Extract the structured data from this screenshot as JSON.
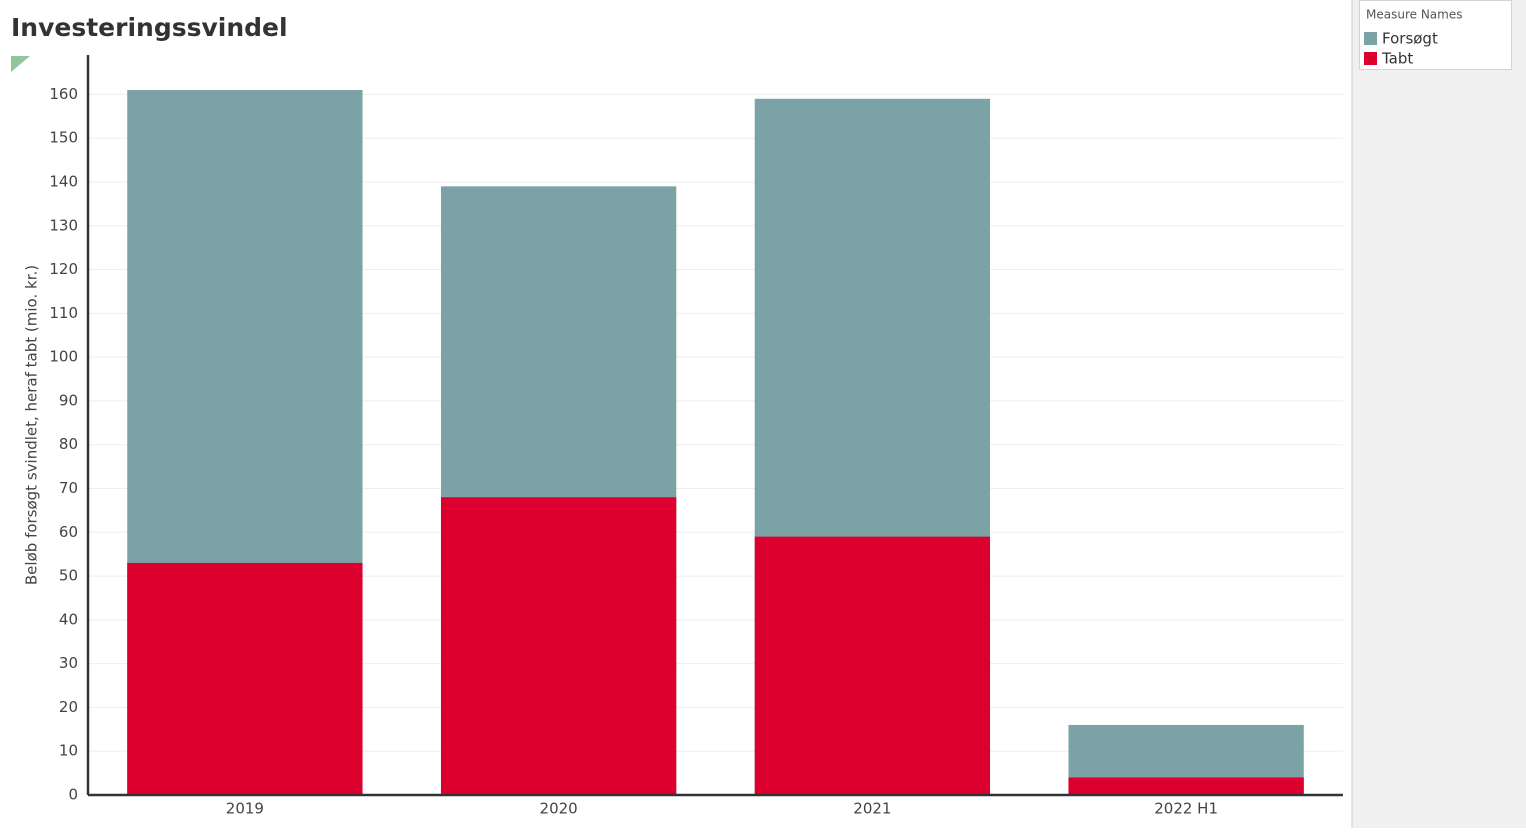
{
  "chart_data": {
    "type": "bar",
    "title": "Investeringssvindel",
    "y_label": "Beløb forsøgt svindlet, heraf tabt (mio. kr.)",
    "legend_title": "Measure Names",
    "categories": [
      "2019",
      "2020",
      "2021",
      "2022 H1"
    ],
    "series": [
      {
        "name": "Forsøgt",
        "color": "#7ba3a5",
        "values": [
          161,
          139,
          159,
          16
        ]
      },
      {
        "name": "Tabt",
        "color": "#dc002e",
        "values": [
          53,
          68,
          59,
          4
        ]
      }
    ],
    "ylim": [
      0,
      169
    ],
    "yticks": [
      0,
      10,
      20,
      30,
      40,
      50,
      60,
      70,
      80,
      90,
      100,
      110,
      120,
      130,
      140,
      150,
      160
    ],
    "grid": true,
    "overlap": true
  }
}
